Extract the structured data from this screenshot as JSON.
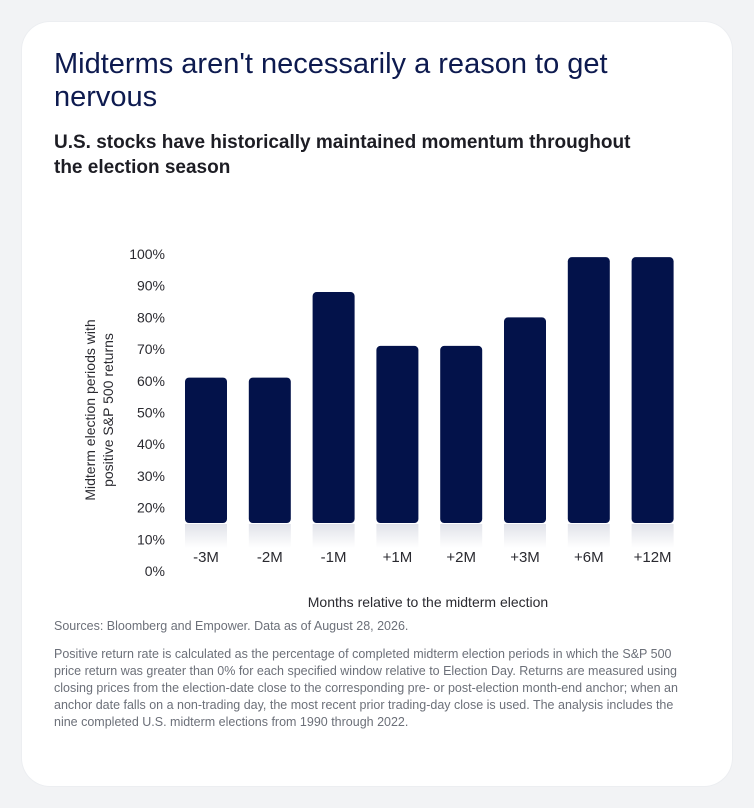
{
  "header": {
    "title": "Midterms aren't necessarily a reason to get nervous",
    "subtitle": "U.S. stocks have historically maintained momentum throughout the election season"
  },
  "chart_data": {
    "type": "bar",
    "categories": [
      "-3M",
      "-2M",
      "-1M",
      "+1M",
      "+2M",
      "+3M",
      "+6M",
      "+12M"
    ],
    "values": [
      61,
      61,
      88,
      71,
      71,
      80,
      99,
      99
    ],
    "xlabel": "Months relative to the midterm election",
    "ylabel": "Midterm election periods with positive S&P 500 returns",
    "ylim": [
      0,
      100
    ],
    "yticks": [
      "0%",
      "10%",
      "20%",
      "30%",
      "40%",
      "50%",
      "60%",
      "70%",
      "80%",
      "90%",
      "100%"
    ],
    "grid": false,
    "legend": "none",
    "bar_color": "#03124a"
  },
  "footer": {
    "sources": "Sources: Bloomberg and Empower. Data as of August 28, 2026.",
    "notes": "Positive return rate is calculated as the percentage of completed midterm election periods in which the S&P 500 price return was greater than 0% for each specified window relative to Election Day. Returns are measured using closing prices from the election-date close to the corresponding pre- or post-election month-end anchor; when an anchor date falls on a non-trading day, the most recent prior trading-day close is used. The analysis includes the nine completed U.S. midterm elections from 1990 through 2022."
  }
}
